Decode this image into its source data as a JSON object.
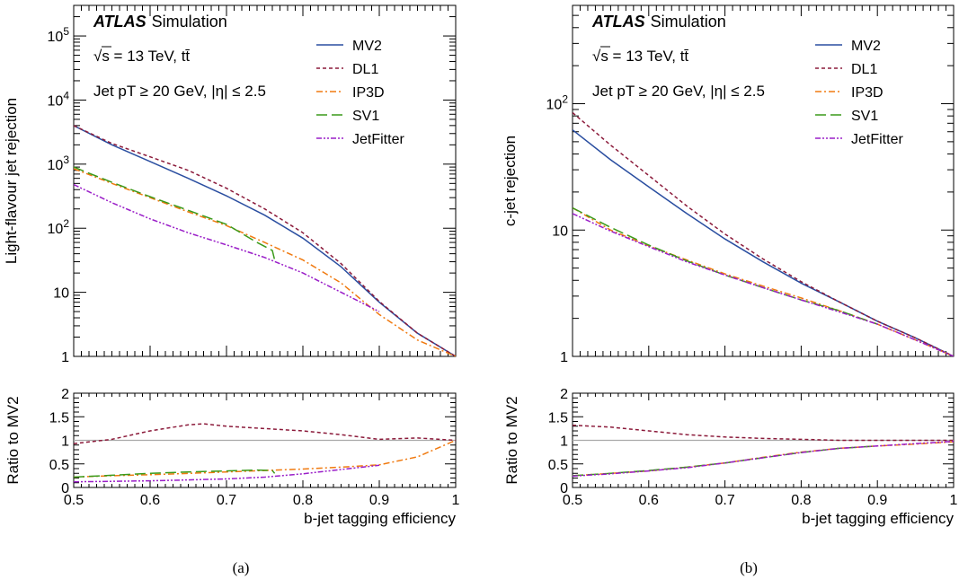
{
  "captions": [
    "(a)",
    "(b)"
  ],
  "chart_data": [
    {
      "type": "line",
      "panel_label": "(a)",
      "experiment": "ATLAS",
      "experiment_suffix": "Simulation",
      "annotation_lines": [
        "√s = 13 TeV, tt̄",
        "Jet pT ≥ 20 GeV, |η| ≤ 2.5"
      ],
      "xlabel": "b-jet tagging efficiency",
      "ylabel": "Light-flavour jet rejection",
      "xlim": [
        0.5,
        1.0
      ],
      "ylim": [
        1,
        300000
      ],
      "yscale": "log",
      "x_ticks": [
        0.5,
        0.6,
        0.7,
        0.8,
        0.9,
        1
      ],
      "y_tick_labels": [
        {
          "value": 1,
          "text": "1"
        },
        {
          "value": 10,
          "text": "10"
        },
        {
          "value": 100,
          "base": "10",
          "exp": "2"
        },
        {
          "value": 1000,
          "base": "10",
          "exp": "3"
        },
        {
          "value": 10000,
          "base": "10",
          "exp": "4"
        },
        {
          "value": 100000,
          "base": "10",
          "exp": "5"
        }
      ],
      "legend_position": "top-right",
      "series": [
        {
          "name": "MV2",
          "color": "#2a4ea0",
          "dash": "solid",
          "x": [
            0.5,
            0.55,
            0.6,
            0.65,
            0.7,
            0.75,
            0.8,
            0.85,
            0.9,
            0.95,
            1.0
          ],
          "y": [
            4000,
            2000,
            1100,
            600,
            320,
            160,
            70,
            25,
            7,
            2.3,
            1
          ]
        },
        {
          "name": "DL1",
          "color": "#8b1a3a",
          "dash": "dashed",
          "x": [
            0.5,
            0.55,
            0.6,
            0.65,
            0.7,
            0.75,
            0.8,
            0.85,
            0.9,
            0.95,
            1.0
          ],
          "y": [
            4000,
            2100,
            1300,
            800,
            420,
            200,
            85,
            28,
            7.2,
            2.3,
            1
          ]
        },
        {
          "name": "IP3D",
          "color": "#f07a10",
          "dash": "dashdot",
          "x": [
            0.5,
            0.55,
            0.6,
            0.65,
            0.7,
            0.75,
            0.8,
            0.85,
            0.9,
            0.95,
            1.0
          ],
          "y": [
            850,
            500,
            300,
            180,
            110,
            60,
            32,
            14,
            4.5,
            1.8,
            1
          ]
        },
        {
          "name": "SV1",
          "color": "#3a9a1a",
          "dash": "longdash",
          "x": [
            0.5,
            0.55,
            0.6,
            0.65,
            0.7,
            0.74,
            0.76,
            0.763
          ],
          "y": [
            900,
            520,
            310,
            190,
            115,
            60,
            45,
            32
          ]
        },
        {
          "name": "JetFitter",
          "color": "#9a1ec8",
          "dash": "dashdotdot",
          "x": [
            0.5,
            0.55,
            0.6,
            0.65,
            0.7,
            0.75,
            0.8,
            0.85,
            0.9
          ],
          "y": [
            480,
            250,
            140,
            85,
            55,
            35,
            20,
            10,
            5
          ]
        }
      ],
      "ratio": {
        "ylabel": "Ratio to MV2",
        "ylim": [
          0,
          2
        ],
        "y_ticks": [
          0,
          0.5,
          1,
          1.5,
          2
        ],
        "y_tick_labels": [
          "0",
          "0.5",
          "1",
          "1.5",
          "2"
        ],
        "reference_line": 1,
        "reference_color": "#aaaaaa",
        "series": [
          {
            "name": "DL1",
            "color": "#8b1a3a",
            "dash": "dashed",
            "x": [
              0.5,
              0.55,
              0.6,
              0.65,
              0.67,
              0.7,
              0.75,
              0.8,
              0.85,
              0.9,
              0.95,
              1.0
            ],
            "y": [
              0.93,
              1.02,
              1.2,
              1.33,
              1.35,
              1.3,
              1.25,
              1.2,
              1.12,
              1.02,
              1.05,
              1.0
            ]
          },
          {
            "name": "IP3D",
            "color": "#f07a10",
            "dash": "dashdot",
            "x": [
              0.5,
              0.55,
              0.6,
              0.65,
              0.7,
              0.75,
              0.8,
              0.85,
              0.9,
              0.95,
              1.0
            ],
            "y": [
              0.22,
              0.25,
              0.27,
              0.3,
              0.33,
              0.36,
              0.39,
              0.43,
              0.48,
              0.65,
              1.0
            ]
          },
          {
            "name": "SV1",
            "color": "#3a9a1a",
            "dash": "longdash",
            "x": [
              0.5,
              0.55,
              0.6,
              0.65,
              0.7,
              0.74,
              0.76,
              0.763
            ],
            "y": [
              0.22,
              0.26,
              0.3,
              0.33,
              0.35,
              0.37,
              0.36,
              0.3
            ]
          },
          {
            "name": "JetFitter",
            "color": "#9a1ec8",
            "dash": "dashdotdot",
            "x": [
              0.5,
              0.55,
              0.6,
              0.65,
              0.7,
              0.75,
              0.8,
              0.85,
              0.9
            ],
            "y": [
              0.12,
              0.13,
              0.14,
              0.16,
              0.18,
              0.22,
              0.29,
              0.38,
              0.47
            ]
          }
        ]
      }
    },
    {
      "type": "line",
      "panel_label": "(b)",
      "experiment": "ATLAS",
      "experiment_suffix": "Simulation",
      "annotation_lines": [
        "√s = 13 TeV, tt̄",
        "Jet pT ≥ 20 GeV, |η| ≤ 2.5"
      ],
      "xlabel": "b-jet tagging efficiency",
      "ylabel": "c-jet rejection",
      "xlim": [
        0.5,
        1.0
      ],
      "ylim": [
        1,
        600
      ],
      "yscale": "log",
      "x_ticks": [
        0.5,
        0.6,
        0.7,
        0.8,
        0.9,
        1
      ],
      "y_tick_labels": [
        {
          "value": 1,
          "text": "1"
        },
        {
          "value": 10,
          "text": "10"
        },
        {
          "value": 100,
          "base": "10",
          "exp": "2"
        }
      ],
      "legend_position": "top-right",
      "series": [
        {
          "name": "MV2",
          "color": "#2a4ea0",
          "dash": "solid",
          "x": [
            0.5,
            0.55,
            0.6,
            0.65,
            0.7,
            0.75,
            0.8,
            0.85,
            0.9,
            0.95,
            1.0
          ],
          "y": [
            62,
            36,
            22,
            13.5,
            8.5,
            5.6,
            3.8,
            2.7,
            1.9,
            1.4,
            1.0
          ]
        },
        {
          "name": "DL1",
          "color": "#8b1a3a",
          "dash": "dashed",
          "x": [
            0.5,
            0.55,
            0.6,
            0.65,
            0.7,
            0.75,
            0.8,
            0.85,
            0.9,
            0.95,
            1.0
          ],
          "y": [
            85,
            47,
            27,
            15.5,
            9.3,
            5.9,
            3.9,
            2.7,
            1.9,
            1.4,
            1.0
          ]
        },
        {
          "name": "IP3D",
          "color": "#f07a10",
          "dash": "dashdot",
          "x": [
            0.5,
            0.55,
            0.6,
            0.65,
            0.7,
            0.75,
            0.8,
            0.85,
            0.9,
            0.95,
            1.0
          ],
          "y": [
            15,
            10,
            7.5,
            5.8,
            4.5,
            3.6,
            2.9,
            2.3,
            1.8,
            1.35,
            1.0
          ]
        },
        {
          "name": "SV1",
          "color": "#3a9a1a",
          "dash": "longdash",
          "x": [
            0.5,
            0.55,
            0.6,
            0.65,
            0.7,
            0.75,
            0.8,
            0.85,
            0.9
          ],
          "y": [
            15,
            10.5,
            7.6,
            5.7,
            4.4,
            3.5,
            2.8,
            2.3,
            1.8
          ]
        },
        {
          "name": "JetFitter",
          "color": "#9a1ec8",
          "dash": "dashdotdot",
          "x": [
            0.5,
            0.55,
            0.6,
            0.65,
            0.7,
            0.75,
            0.8,
            0.85,
            0.9,
            0.95,
            1.0
          ],
          "y": [
            13.5,
            9.8,
            7.4,
            5.6,
            4.4,
            3.5,
            2.8,
            2.25,
            1.8,
            1.35,
            1.0
          ]
        }
      ],
      "ratio": {
        "ylabel": "Ratio to MV2",
        "ylim": [
          0,
          2
        ],
        "y_ticks": [
          0,
          0.5,
          1,
          1.5,
          2
        ],
        "y_tick_labels": [
          "0",
          "0.5",
          "1",
          "1.5",
          "2"
        ],
        "reference_line": 1,
        "reference_color": "#aaaaaa",
        "series": [
          {
            "name": "DL1",
            "color": "#8b1a3a",
            "dash": "dashed",
            "x": [
              0.5,
              0.55,
              0.6,
              0.65,
              0.7,
              0.75,
              0.8,
              0.85,
              0.9,
              0.95,
              1.0
            ],
            "y": [
              1.32,
              1.28,
              1.2,
              1.12,
              1.07,
              1.04,
              1.02,
              1.0,
              1.0,
              1.0,
              1.0
            ]
          },
          {
            "name": "IP3D",
            "color": "#f07a10",
            "dash": "dashdot",
            "x": [
              0.5,
              0.55,
              0.6,
              0.65,
              0.7,
              0.75,
              0.8,
              0.85,
              0.9,
              0.95,
              1.0
            ],
            "y": [
              0.25,
              0.3,
              0.35,
              0.43,
              0.52,
              0.64,
              0.75,
              0.83,
              0.88,
              0.92,
              0.97
            ]
          },
          {
            "name": "SV1",
            "color": "#3a9a1a",
            "dash": "longdash",
            "x": [
              0.5,
              0.55,
              0.6,
              0.65,
              0.7,
              0.75,
              0.8,
              0.85,
              0.9
            ],
            "y": [
              0.25,
              0.3,
              0.36,
              0.43,
              0.52,
              0.63,
              0.74,
              0.83,
              0.88
            ]
          },
          {
            "name": "JetFitter",
            "color": "#9a1ec8",
            "dash": "dashdotdot",
            "x": [
              0.5,
              0.55,
              0.6,
              0.65,
              0.7,
              0.75,
              0.8,
              0.85,
              0.9,
              0.95,
              1.0
            ],
            "y": [
              0.24,
              0.29,
              0.35,
              0.42,
              0.52,
              0.63,
              0.74,
              0.83,
              0.88,
              0.93,
              0.98
            ]
          }
        ]
      }
    }
  ]
}
